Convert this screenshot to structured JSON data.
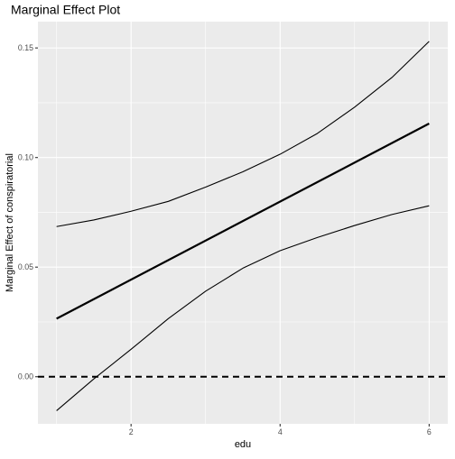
{
  "chart_data": {
    "type": "line",
    "title": "Marginal Effect Plot",
    "xlabel": "edu",
    "ylabel": "Marginal Effect of conspiratorial",
    "xlim": [
      0.75,
      6.25
    ],
    "ylim": [
      -0.0215,
      0.162
    ],
    "x_ticks": [
      {
        "value": 2,
        "label": "2"
      },
      {
        "value": 4,
        "label": "4"
      },
      {
        "value": 6,
        "label": "6"
      }
    ],
    "y_ticks": [
      {
        "value": 0.0,
        "label": "0.00"
      },
      {
        "value": 0.05,
        "label": "0.05"
      },
      {
        "value": 0.1,
        "label": "0.10"
      },
      {
        "value": 0.15,
        "label": "0.15"
      }
    ],
    "reference_line": {
      "y": 0.0,
      "style": "dashed"
    },
    "series": [
      {
        "role": "upper",
        "x": [
          1,
          1.5,
          2,
          2.5,
          3,
          3.5,
          4,
          4.5,
          5,
          5.5,
          6
        ],
        "values": [
          0.0685,
          0.0715,
          0.0755,
          0.08,
          0.0865,
          0.0935,
          0.1015,
          0.111,
          0.123,
          0.1365,
          0.153
        ]
      },
      {
        "role": "estimate",
        "x": [
          1,
          6
        ],
        "values": [
          0.0265,
          0.1155
        ]
      },
      {
        "role": "lower",
        "x": [
          1,
          1.5,
          2,
          2.5,
          3,
          3.5,
          4,
          4.5,
          5,
          5.5,
          6
        ],
        "values": [
          -0.0155,
          -0.001,
          0.0125,
          0.0265,
          0.039,
          0.0495,
          0.0575,
          0.0635,
          0.069,
          0.074,
          0.078
        ]
      }
    ],
    "grid": true,
    "panel_background": "#ebebeb",
    "grid_color": "#ffffff"
  }
}
